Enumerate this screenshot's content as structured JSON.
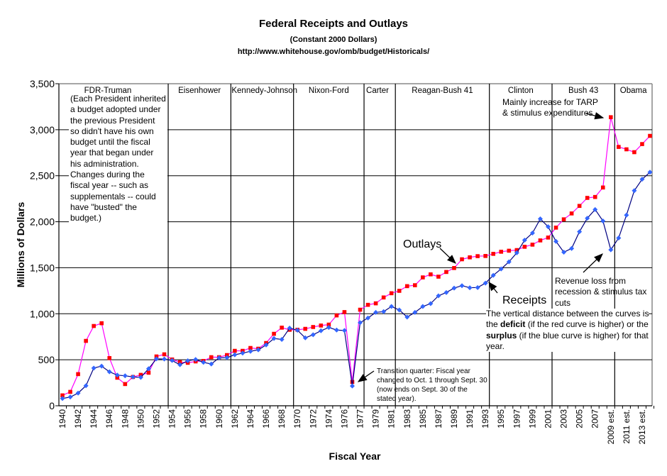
{
  "chart_data": {
    "type": "line",
    "title": "Federal Receipts and Outlays",
    "subtitle": "(Constant 2000 Dollars)",
    "source": "http://www.whitehouse.gov/omb/budget/Historicals/",
    "xlabel": "Fiscal Year",
    "ylabel": "Millions of Dollars",
    "ylim": [
      0,
      3500
    ],
    "yticks": [
      "0",
      "500",
      "1,000",
      "1,500",
      "2,000",
      "2,500",
      "3,000",
      "3,500"
    ],
    "grid": true,
    "x": [
      "1940",
      "1941",
      "1942",
      "1943",
      "1944",
      "1945",
      "1946",
      "1947",
      "1948",
      "1949",
      "1950",
      "1951",
      "1952",
      "1953",
      "1954",
      "1955",
      "1956",
      "1957",
      "1958",
      "1959",
      "1960",
      "1961",
      "1962",
      "1963",
      "1964",
      "1965",
      "1966",
      "1967",
      "1968",
      "1969",
      "1970",
      "1971",
      "1972",
      "1973",
      "1974",
      "1975",
      "1976",
      "TQ",
      "1977",
      "1978",
      "1979",
      "1980",
      "1981",
      "1982",
      "1983",
      "1984",
      "1985",
      "1986",
      "1987",
      "1988",
      "1989",
      "1990",
      "1991",
      "1992",
      "1993",
      "1994",
      "1995",
      "1996",
      "1997",
      "1998",
      "1999",
      "2000",
      "2001",
      "2002",
      "2003",
      "2004",
      "2005",
      "2006",
      "2007",
      "2008",
      "2009 est.",
      "2010 est.",
      "2011 est.",
      "2012 est.",
      "2013 est.",
      "2014 est."
    ],
    "xtick_labels": [
      "1940",
      "1942",
      "1944",
      "1946",
      "1948",
      "1950",
      "1952",
      "1954",
      "1956",
      "1958",
      "1960",
      "1962",
      "1964",
      "1966",
      "1968",
      "1970",
      "1972",
      "1974",
      "1976",
      "1977",
      "1979",
      "1981",
      "1983",
      "1985",
      "1987",
      "1989",
      "1991",
      "1993",
      "1995",
      "1997",
      "1999",
      "2001",
      "2003",
      "2005",
      "2007",
      "2009 est.",
      "2011 est.",
      "2013 est."
    ],
    "series": [
      {
        "name": "Outlays",
        "color": "#ff00ff",
        "marker_color": "#ff0000",
        "marker": "square",
        "values": [
          113,
          151,
          344,
          705,
          867,
          897,
          518,
          305,
          236,
          313,
          336,
          359,
          536,
          559,
          503,
          474,
          467,
          482,
          487,
          528,
          528,
          551,
          597,
          597,
          628,
          620,
          682,
          782,
          849,
          826,
          826,
          836,
          856,
          872,
          882,
          982,
          1018,
          259,
          1044,
          1097,
          1113,
          1177,
          1223,
          1249,
          1300,
          1310,
          1395,
          1428,
          1403,
          1454,
          1497,
          1592,
          1613,
          1626,
          1628,
          1651,
          1674,
          1685,
          1692,
          1728,
          1751,
          1797,
          1828,
          1936,
          2026,
          2090,
          2172,
          2259,
          2269,
          2372,
          3136,
          2813,
          2787,
          2756,
          2844,
          2933
        ]
      },
      {
        "name": "Receipts",
        "color": "#000080",
        "marker_color": "#3366ff",
        "marker": "diamond",
        "values": [
          79,
          95,
          138,
          218,
          410,
          431,
          369,
          333,
          326,
          313,
          308,
          403,
          510,
          508,
          492,
          446,
          490,
          503,
          472,
          454,
          521,
          523,
          554,
          572,
          592,
          608,
          661,
          731,
          721,
          844,
          821,
          738,
          772,
          815,
          851,
          823,
          818,
          215,
          903,
          954,
          1015,
          1023,
          1079,
          1041,
          964,
          1015,
          1079,
          1110,
          1195,
          1231,
          1279,
          1305,
          1283,
          1285,
          1333,
          1418,
          1487,
          1564,
          1662,
          1800,
          1877,
          2031,
          1946,
          1787,
          1669,
          1710,
          1892,
          2038,
          2133,
          2008,
          1695,
          1823,
          2072,
          2338,
          2462,
          2538
        ]
      }
    ],
    "eras": [
      "FDR-Truman",
      "Eisenhower",
      "Kennedy-Johnson",
      "Nixon-Ford",
      "Carter",
      "Reagan-Bush 41",
      "Clinton",
      "Bush 43",
      "Obama"
    ],
    "annotations": {
      "fdr_note": [
        "(Each President inherited",
        "a budget adopted under",
        "the previous President",
        "so didn't have his own",
        "budget until the fiscal",
        "year that began under",
        "his administration.",
        "Changes during the",
        "fiscal year -- such as",
        "supplementals -- could",
        "have \"busted\" the",
        "budget.)"
      ],
      "tarp": [
        "Mainly increase for TARP",
        "& stimulus expenditures"
      ],
      "revenue": [
        "Revenue loss from",
        "recession & stimulus tax",
        "cuts"
      ],
      "deficit": {
        "line1": "The vertical distance between the curves is",
        "pre_deficit": "the ",
        "deficit_word": "deficit",
        "post_deficit": " (if the red curve is higher) or the",
        "surplus_word": "surplus",
        "post_surplus": " (if the blue curve is higher) for that",
        "line4": "year."
      },
      "transition": [
        "Transition quarter: Fiscal year",
        "changed to Oct. 1 through Sept. 30",
        "(now ends on Sept. 30 of the",
        "stated year)."
      ],
      "outlays_label": "Outlays",
      "receipts_label": "Receipts"
    }
  }
}
